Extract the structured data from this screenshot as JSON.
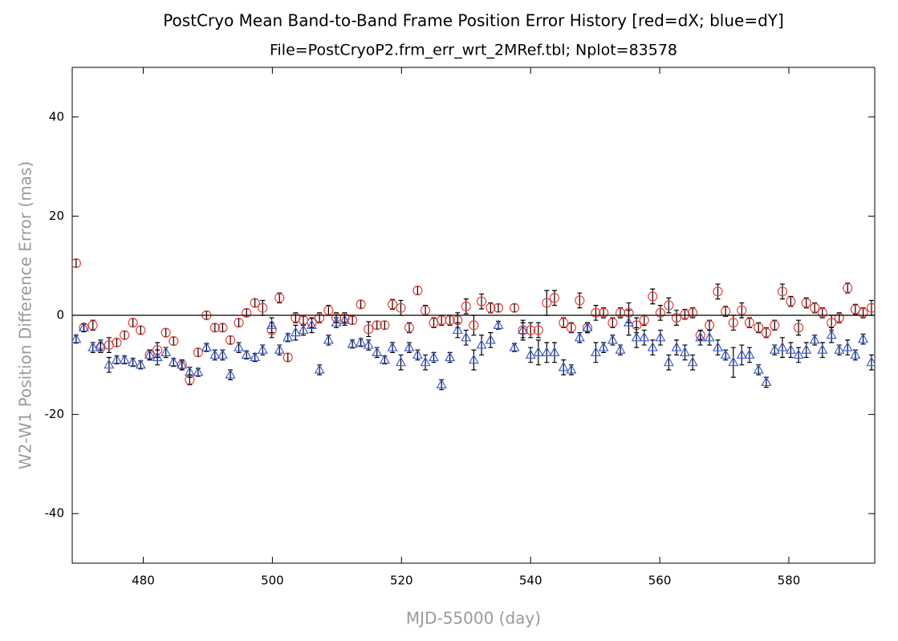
{
  "chart_data": {
    "type": "scatter",
    "title": "PostCryo Mean Band-to-Band Frame Position Error History [red=dX; blue=dY]",
    "subtitle": "File=PostCryoP2.frm_err_wrt_2MRef.tbl; Nplot=83578",
    "x_label": "MJD-55000 (day)",
    "y_label": "W2-W1 Position Difference Error (mas)",
    "xlim": [
      469,
      593.3
    ],
    "ylim": [
      -50,
      50
    ],
    "xticks": [
      480,
      500,
      520,
      540,
      560,
      580
    ],
    "yticks": [
      -40,
      -20,
      0,
      20,
      40
    ],
    "reference_line": 0,
    "x": [
      469.6,
      470.8,
      472.2,
      473.4,
      474.7,
      475.9,
      477.1,
      478.4,
      479.6,
      481.0,
      482.2,
      483.5,
      484.7,
      486.0,
      487.2,
      488.5,
      489.8,
      491.1,
      492.3,
      493.5,
      494.8,
      496.0,
      497.3,
      498.5,
      499.9,
      501.1,
      502.4,
      503.6,
      504.8,
      506.1,
      507.3,
      508.7,
      509.9,
      511.2,
      512.4,
      513.7,
      514.9,
      516.2,
      517.4,
      518.6,
      519.9,
      521.2,
      522.5,
      523.7,
      525.0,
      526.2,
      527.5,
      528.7,
      530.0,
      531.2,
      532.4,
      533.8,
      535.0,
      537.5,
      538.8,
      540.0,
      541.2,
      542.5,
      543.7,
      545.1,
      546.3,
      547.6,
      548.8,
      550.1,
      551.3,
      552.7,
      553.9,
      555.2,
      556.4,
      557.6,
      558.9,
      560.1,
      561.4,
      562.6,
      563.9,
      565.1,
      566.3,
      567.7,
      569.0,
      570.2,
      571.4,
      572.7,
      573.9,
      575.3,
      576.5,
      577.8,
      579.0,
      580.3,
      581.5,
      582.7,
      584.0,
      585.2,
      586.6,
      587.8,
      589.1,
      590.3,
      591.5,
      592.8
    ],
    "error_color": "#000000",
    "series": [
      {
        "color": "#e8413c",
        "marker": "circle",
        "values": [
          10.5,
          -2.5,
          -2,
          -6.5,
          -6,
          -5.5,
          -4,
          -1.5,
          -3,
          -8,
          -7,
          -3.5,
          -5.2,
          -10,
          -13,
          -7.5,
          0,
          -2.5,
          -2.5,
          -5,
          -1.5,
          0.5,
          2.5,
          1.5,
          -3,
          3.5,
          -8.5,
          -0.5,
          -1,
          -1.5,
          -0.5,
          1,
          -0.5,
          -0.5,
          -1,
          2.2,
          -2.8,
          -2,
          -2,
          2.2,
          1.5,
          -2.5,
          5,
          1,
          -1.5,
          -1,
          -1,
          -1,
          1.8,
          -2,
          2.8,
          1.5,
          1.5,
          1.5,
          -3,
          -3,
          -3,
          2.5,
          3.5,
          -1.5,
          -2.5,
          3,
          -2.5,
          0.5,
          0.5,
          -1.5,
          0.5,
          0.5,
          -2,
          -1,
          3.8,
          0.5,
          2,
          -0.5,
          0.2,
          0.5,
          -4,
          -2,
          4.8,
          0.8,
          -1.5,
          1,
          -1.5,
          -2.5,
          -3.5,
          -2,
          4.8,
          2.8,
          -2.5,
          2.5,
          1.5,
          0.5,
          -1.5,
          -0.5,
          5.5,
          1.2,
          0.5,
          1.5
        ],
        "errors": [
          0.8,
          0.8,
          1,
          1,
          1.5,
          0.8,
          0.8,
          0.8,
          0.8,
          1,
          1.5,
          0.8,
          0.8,
          0.8,
          1,
          0.8,
          0.8,
          0.8,
          0.8,
          0.8,
          0.8,
          0.8,
          0.8,
          1.5,
          1.5,
          1,
          0.8,
          1,
          0.8,
          1,
          1,
          1,
          1,
          1,
          0.8,
          0.8,
          1.5,
          0.8,
          0.8,
          1,
          1.5,
          1,
          0.8,
          1,
          1,
          1,
          1,
          1.5,
          1.5,
          2,
          1.5,
          1,
          0.8,
          0.8,
          2,
          1.5,
          1.5,
          2.5,
          1.5,
          1,
          1,
          1.5,
          1,
          1.5,
          1,
          1,
          1,
          2,
          1.5,
          1,
          1.5,
          1.5,
          1.5,
          1.5,
          1,
          1,
          1,
          1,
          1.5,
          1,
          1.5,
          1.5,
          1,
          1,
          1,
          1,
          1.5,
          1,
          1.5,
          1,
          1,
          1,
          1.5,
          1,
          1,
          1,
          1,
          1.5
        ]
      },
      {
        "color": "#3c5fd6",
        "marker": "triangle",
        "values": [
          -4.8,
          -2.5,
          -6.5,
          -6,
          -10,
          -9,
          -9,
          -9.5,
          -10,
          -8,
          -8.5,
          -7.5,
          -9.5,
          -10,
          -11.5,
          -11.5,
          -6.5,
          -8,
          -8,
          -12,
          -6.5,
          -8,
          -8.5,
          -7,
          -2,
          -7,
          -4.5,
          -3.5,
          -3,
          -2,
          -11,
          -5,
          -1.5,
          -1,
          -5.8,
          -5.5,
          -6,
          -7.5,
          -9,
          -6.5,
          -9.5,
          -6.5,
          -8,
          -9.5,
          -8.5,
          -14,
          -8.5,
          -3,
          -4.5,
          -9,
          -6,
          -5,
          -2,
          -6.5,
          -3,
          -8,
          -7.5,
          -7.5,
          -7.5,
          -10.5,
          -11,
          -4.5,
          -2.5,
          -7.5,
          -6.5,
          -5,
          -7,
          -1.5,
          -4.5,
          -4.5,
          -6.5,
          -4.5,
          -9.5,
          -6.5,
          -7.5,
          -9.5,
          -4.5,
          -4.5,
          -6.5,
          -8,
          -9.5,
          -8,
          -8,
          -11,
          -13.5,
          -7,
          -6.5,
          -7,
          -8,
          -7,
          -5,
          -7,
          -4,
          -7,
          -6.5,
          -8,
          -4.8,
          -9.5
        ],
        "errors": [
          0.8,
          0.8,
          1,
          1,
          1.5,
          0.8,
          0.8,
          0.8,
          0.8,
          1,
          1.5,
          1,
          0.8,
          1,
          1,
          0.8,
          0.8,
          1,
          1,
          1,
          1,
          0.8,
          0.8,
          1,
          1.5,
          1,
          0.8,
          1.5,
          1,
          1.5,
          1,
          1,
          1,
          1,
          0.8,
          0.8,
          1,
          1,
          0.8,
          1,
          1.5,
          1,
          1,
          1.5,
          1,
          1,
          1,
          1.5,
          1.5,
          2,
          2,
          1.5,
          0.8,
          0.8,
          1.5,
          1.5,
          2.5,
          2,
          2,
          1.5,
          1,
          1,
          1,
          2,
          1,
          1,
          1,
          2.5,
          2,
          1.5,
          1.5,
          1.5,
          1.5,
          1.5,
          1.5,
          1.5,
          1.5,
          1.5,
          1.5,
          1,
          3,
          2,
          1.5,
          1,
          1,
          1,
          2,
          1.5,
          1.5,
          1.5,
          1,
          1.5,
          1.5,
          1,
          1.5,
          1,
          1,
          1.5
        ]
      }
    ]
  }
}
